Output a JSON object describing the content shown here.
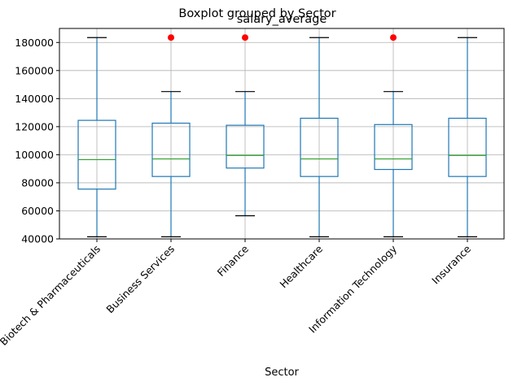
{
  "chart_data": {
    "type": "boxplot",
    "title": "Boxplot grouped by Sector",
    "subtitle": "salary_average",
    "xlabel": "Sector",
    "ylabel": "",
    "ylim": [
      40000,
      190000
    ],
    "yticks": [
      40000,
      60000,
      80000,
      100000,
      120000,
      140000,
      160000,
      180000
    ],
    "grid": true,
    "categories": [
      "Biotech & Pharmaceuticals",
      "Business Services",
      "Finance",
      "Healthcare",
      "Information Technology",
      "Insurance"
    ],
    "boxes": [
      {
        "whisker_low": 41500,
        "q1": 75500,
        "median": 96500,
        "q3": 124500,
        "whisker_high": 183500,
        "outliers": []
      },
      {
        "whisker_low": 41500,
        "q1": 84500,
        "median": 97000,
        "q3": 122500,
        "whisker_high": 145000,
        "outliers": [
          183500
        ]
      },
      {
        "whisker_low": 56500,
        "q1": 90500,
        "median": 99500,
        "q3": 121000,
        "whisker_high": 145000,
        "outliers": [
          183500
        ]
      },
      {
        "whisker_low": 41500,
        "q1": 84500,
        "median": 97000,
        "q3": 126000,
        "whisker_high": 183500,
        "outliers": []
      },
      {
        "whisker_low": 41500,
        "q1": 89500,
        "median": 97000,
        "q3": 121500,
        "whisker_high": 145000,
        "outliers": [
          183500
        ]
      },
      {
        "whisker_low": 41500,
        "q1": 84500,
        "median": 99500,
        "q3": 126000,
        "whisker_high": 183500,
        "outliers": []
      }
    ],
    "colors": {
      "box": "#1f77b4",
      "median": "#2ca02c",
      "whisker": "#1f77b4",
      "cap": "#000000",
      "outlier": "#ff0000",
      "grid": "#b0b0b0"
    }
  }
}
